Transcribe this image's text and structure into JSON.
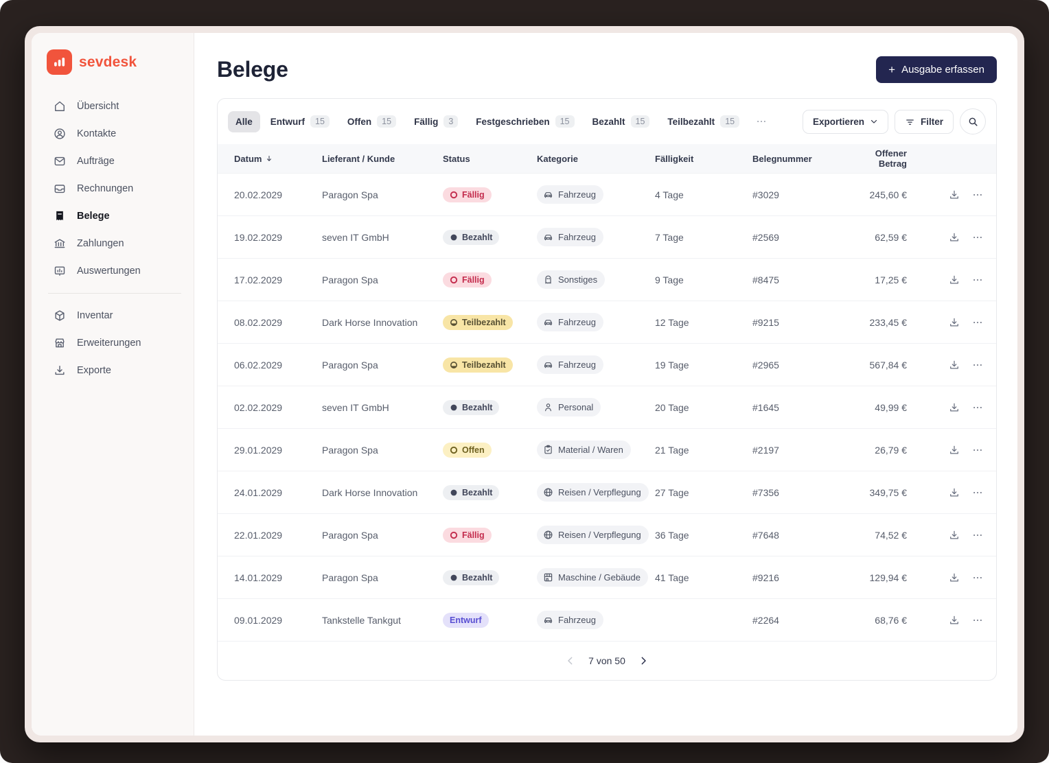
{
  "brand": {
    "name": "sevdesk",
    "accent_color": "#f1543c"
  },
  "sidebar": {
    "items": [
      {
        "label": "Übersicht",
        "icon": "home-icon",
        "active": false
      },
      {
        "label": "Kontakte",
        "icon": "contacts-icon",
        "active": false
      },
      {
        "label": "Aufträge",
        "icon": "mail-icon",
        "active": false
      },
      {
        "label": "Rechnungen",
        "icon": "invoice-icon",
        "active": false
      },
      {
        "label": "Belege",
        "icon": "receipt-icon",
        "active": true
      },
      {
        "label": "Zahlungen",
        "icon": "bank-icon",
        "active": false
      },
      {
        "label": "Auswertungen",
        "icon": "reports-icon",
        "active": false
      }
    ],
    "secondary_items": [
      {
        "label": "Inventar",
        "icon": "inventory-icon",
        "active": false
      },
      {
        "label": "Erweiterungen",
        "icon": "store-icon",
        "active": false
      },
      {
        "label": "Exporte",
        "icon": "export-icon",
        "active": false
      }
    ]
  },
  "header": {
    "title": "Belege",
    "primary_action": "Ausgabe erfassen"
  },
  "toolbar": {
    "tabs": [
      {
        "label": "Alle",
        "count": "",
        "active": true
      },
      {
        "label": "Entwurf",
        "count": "15",
        "active": false
      },
      {
        "label": "Offen",
        "count": "15",
        "active": false
      },
      {
        "label": "Fällig",
        "count": "3",
        "active": false
      },
      {
        "label": "Festgeschrieben",
        "count": "15",
        "active": false
      },
      {
        "label": "Bezahlt",
        "count": "15",
        "active": false
      },
      {
        "label": "Teilbezahlt",
        "count": "15",
        "active": false
      }
    ],
    "export_label": "Exportieren",
    "filter_label": "Filter"
  },
  "table": {
    "columns": [
      "Datum",
      "Lieferant / Kunde",
      "Status",
      "Kategorie",
      "Fälligkeit",
      "Belegnummer",
      "Offener Betrag"
    ],
    "rows": [
      {
        "date": "20.02.2029",
        "supplier": "Paragon Spa",
        "status": "Fällig",
        "status_type": "faellig",
        "status_icon": "ring",
        "category": "Fahrzeug",
        "category_icon": "car-icon",
        "due": "4 Tage",
        "number": "#3029",
        "amount": "245,60 €"
      },
      {
        "date": "19.02.2029",
        "supplier": "seven IT GmbH",
        "status": "Bezahlt",
        "status_type": "bezahlt",
        "status_icon": "dot",
        "category": "Fahrzeug",
        "category_icon": "car-icon",
        "due": "7 Tage",
        "number": "#2569",
        "amount": "62,59 €"
      },
      {
        "date": "17.02.2029",
        "supplier": "Paragon Spa",
        "status": "Fällig",
        "status_type": "faellig",
        "status_icon": "ring",
        "category": "Sonstiges",
        "category_icon": "misc-icon",
        "due": "9 Tage",
        "number": "#8475",
        "amount": "17,25 €"
      },
      {
        "date": "08.02.2029",
        "supplier": "Dark Horse Innovation",
        "status": "Teilbezahlt",
        "status_type": "teilbezahlt",
        "status_icon": "half",
        "category": "Fahrzeug",
        "category_icon": "car-icon",
        "due": "12 Tage",
        "number": "#9215",
        "amount": "233,45 €"
      },
      {
        "date": "06.02.2029",
        "supplier": "Paragon Spa",
        "status": "Teilbezahlt",
        "status_type": "teilbezahlt",
        "status_icon": "half",
        "category": "Fahrzeug",
        "category_icon": "car-icon",
        "due": "19 Tage",
        "number": "#2965",
        "amount": "567,84 €"
      },
      {
        "date": "02.02.2029",
        "supplier": "seven IT GmbH",
        "status": "Bezahlt",
        "status_type": "bezahlt",
        "status_icon": "dot",
        "category": "Personal",
        "category_icon": "person-icon",
        "due": "20 Tage",
        "number": "#1645",
        "amount": "49,99 €"
      },
      {
        "date": "29.01.2029",
        "supplier": "Paragon Spa",
        "status": "Offen",
        "status_type": "offen",
        "status_icon": "ring",
        "category": "Material / Waren",
        "category_icon": "material-icon",
        "due": "21 Tage",
        "number": "#2197",
        "amount": "26,79 €"
      },
      {
        "date": "24.01.2029",
        "supplier": "Dark Horse Innovation",
        "status": "Bezahlt",
        "status_type": "bezahlt",
        "status_icon": "dot",
        "category": "Reisen / Verpflegung",
        "category_icon": "travel-icon",
        "due": "27 Tage",
        "number": "#7356",
        "amount": "349,75 €"
      },
      {
        "date": "22.01.2029",
        "supplier": "Paragon Spa",
        "status": "Fällig",
        "status_type": "faellig",
        "status_icon": "ring",
        "category": "Reisen / Verpflegung",
        "category_icon": "travel-icon",
        "due": "36 Tage",
        "number": "#7648",
        "amount": "74,52 €"
      },
      {
        "date": "14.01.2029",
        "supplier": "Paragon Spa",
        "status": "Bezahlt",
        "status_type": "bezahlt",
        "status_icon": "dot",
        "category": "Maschine / Gebäude",
        "category_icon": "building-icon",
        "due": "41 Tage",
        "number": "#9216",
        "amount": "129,94 €"
      },
      {
        "date": "09.01.2029",
        "supplier": "Tankstelle Tankgut",
        "status": "Entwurf",
        "status_type": "entwurf",
        "status_icon": "none",
        "category": "Fahrzeug",
        "category_icon": "car-icon",
        "due": "",
        "number": "#2264",
        "amount": "68,76 €"
      }
    ]
  },
  "pagination": {
    "label": "7 von 50"
  },
  "colors": {
    "primary_button": "#232650",
    "status_faellig_bg": "#fbdbe0",
    "status_faellig_text": "#c32b4c",
    "status_bezahlt_bg": "#edeff2",
    "status_bezahlt_text": "#41465a",
    "status_teilbezahlt_bg": "#f8e5a6",
    "status_teilbezahlt_text": "#575033",
    "status_offen_bg": "#fcf0c3",
    "status_offen_text": "#6e6120",
    "status_entwurf_bg": "#e4e1fa",
    "status_entwurf_text": "#584ed2"
  }
}
